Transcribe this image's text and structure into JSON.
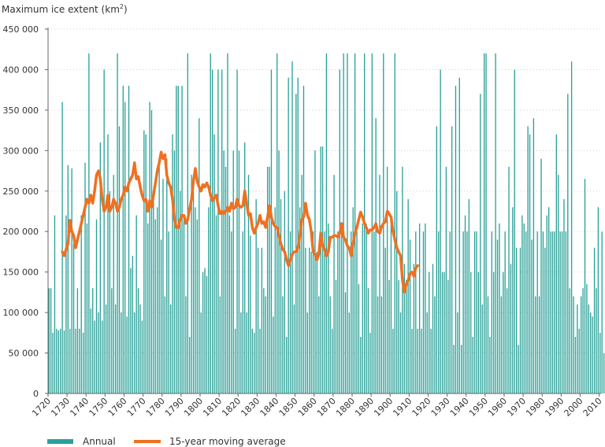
{
  "chart_data": {
    "type": "bar",
    "title": "",
    "ylabel": "Maximum ice extent (km",
    "ylabel_sup": "2",
    "ylabel_close": ")",
    "xlabel": "",
    "ylim": [
      0,
      450000
    ],
    "xlim": [
      1720,
      2011
    ],
    "y_ticks": [
      0,
      50000,
      100000,
      150000,
      200000,
      250000,
      300000,
      350000,
      400000,
      450000
    ],
    "y_tick_labels": [
      "0",
      "50 000",
      "100 000",
      "150 000",
      "200 000",
      "250 000",
      "300 000",
      "350 000",
      "400 000",
      "450 000"
    ],
    "x_ticks": [
      1720,
      1730,
      1740,
      1750,
      1760,
      1770,
      1780,
      1790,
      1800,
      1810,
      1820,
      1830,
      1840,
      1850,
      1860,
      1870,
      1880,
      1890,
      1900,
      1910,
      1920,
      1930,
      1940,
      1950,
      1960,
      1970,
      1980,
      1990,
      2000,
      2010
    ],
    "x_tick_labels": [
      "1720",
      "1730",
      "1740",
      "1750",
      "1760",
      "1770",
      "1780",
      "1790",
      "1800",
      "1810",
      "1820",
      "1830",
      "1840",
      "1850",
      "1860",
      "1870",
      "1880",
      "1890",
      "1900",
      "1910",
      "1920",
      "1930",
      "1940",
      "1950",
      "1960",
      "1970",
      "1980",
      "1990",
      "2000",
      "2010"
    ],
    "legend": [
      {
        "label": "Annual",
        "color": "#2aa198"
      },
      {
        "label": "15-year moving average",
        "color": "#f07020"
      }
    ],
    "colors": {
      "annual": "#2aa198",
      "moving_average": "#f07020",
      "axis": "#666666",
      "grid": "#cfcfcf"
    },
    "series": [
      {
        "name": "Annual",
        "start_year": 1720,
        "values": [
          130000,
          130000,
          75000,
          220000,
          80000,
          78000,
          80000,
          360000,
          78000,
          220000,
          282000,
          80000,
          278000,
          185000,
          80000,
          130000,
          80000,
          220000,
          75000,
          285000,
          210000,
          420000,
          105000,
          130000,
          90000,
          215000,
          100000,
          310000,
          90000,
          400000,
          110000,
          320000,
          250000,
          130000,
          270000,
          110000,
          420000,
          330000,
          100000,
          380000,
          360000,
          95000,
          380000,
          155000,
          170000,
          100000,
          220000,
          130000,
          110000,
          90000,
          325000,
          320000,
          210000,
          360000,
          350000,
          250000,
          215000,
          230000,
          280000,
          190000,
          265000,
          120000,
          290000,
          200000,
          110000,
          320000,
          300000,
          380000,
          380000,
          250000,
          380000,
          220000,
          120000,
          420000,
          70000,
          270000,
          250000,
          230000,
          215000,
          340000,
          100000,
          150000,
          155000,
          145000,
          230000,
          420000,
          400000,
          320000,
          220000,
          400000,
          120000,
          400000,
          300000,
          280000,
          420000,
          220000,
          200000,
          300000,
          80000,
          400000,
          300000,
          100000,
          200000,
          310000,
          100000,
          270000,
          195000,
          80000,
          75000,
          240000,
          180000,
          80000,
          180000,
          130000,
          120000,
          280000,
          280000,
          400000,
          95000,
          230000,
          420000,
          300000,
          240000,
          120000,
          250000,
          70000,
          390000,
          200000,
          410000,
          110000,
          370000,
          390000,
          230000,
          270000,
          380000,
          180000,
          100000,
          180000,
          175000,
          200000,
          300000,
          175000,
          120000,
          305000,
          305000,
          200000,
          420000,
          210000,
          120000,
          80000,
          270000,
          140000,
          200000,
          400000,
          200000,
          420000,
          125000,
          420000,
          100000,
          200000,
          230000,
          420000,
          200000,
          135000,
          70000,
          210000,
          420000,
          210000,
          130000,
          75000,
          420000,
          200000,
          340000,
          120000,
          270000,
          120000,
          420000,
          180000,
          280000,
          140000,
          210000,
          80000,
          420000,
          250000,
          140000,
          100000,
          280000,
          160000,
          140000,
          240000,
          190000,
          80000,
          160000,
          200000,
          80000,
          210000,
          80000,
          200000,
          210000,
          100000,
          150000,
          80000,
          160000,
          120000,
          330000,
          200000,
          400000,
          150000,
          150000,
          280000,
          140000,
          200000,
          330000,
          60000,
          380000,
          100000,
          390000,
          60000,
          200000,
          220000,
          200000,
          240000,
          150000,
          70000,
          200000,
          200000,
          150000,
          370000,
          110000,
          420000,
          420000,
          120000,
          70000,
          200000,
          150000,
          420000,
          190000,
          210000,
          120000,
          150000,
          200000,
          130000,
          280000,
          160000,
          230000,
          400000,
          180000,
          60000,
          180000,
          220000,
          210000,
          200000,
          330000,
          320000,
          190000,
          340000,
          120000,
          200000,
          120000,
          290000,
          200000,
          180000,
          220000,
          230000,
          200000,
          200000,
          200000,
          320000,
          270000,
          200000,
          200000,
          240000,
          200000,
          370000,
          130000,
          410000,
          120000,
          70000,
          110000,
          80000,
          120000,
          130000,
          265000,
          135000,
          110000,
          100000,
          95000,
          180000,
          130000,
          230000,
          75000,
          200000,
          50000,
          110000,
          245000,
          310000
        ]
      },
      {
        "name": "15-year moving average",
        "points": [
          [
            1727,
            175000
          ],
          [
            1728,
            170000
          ],
          [
            1729,
            178000
          ],
          [
            1730,
            185000
          ],
          [
            1731,
            214000
          ],
          [
            1732,
            200000
          ],
          [
            1733,
            195000
          ],
          [
            1734,
            180000
          ],
          [
            1735,
            190000
          ],
          [
            1736,
            200000
          ],
          [
            1737,
            210000
          ],
          [
            1738,
            220000
          ],
          [
            1739,
            230000
          ],
          [
            1740,
            240000
          ],
          [
            1741,
            235000
          ],
          [
            1742,
            245000
          ],
          [
            1743,
            235000
          ],
          [
            1744,
            250000
          ],
          [
            1745,
            270000
          ],
          [
            1746,
            275000
          ],
          [
            1747,
            265000
          ],
          [
            1748,
            240000
          ],
          [
            1749,
            225000
          ],
          [
            1750,
            230000
          ],
          [
            1751,
            245000
          ],
          [
            1752,
            225000
          ],
          [
            1753,
            230000
          ],
          [
            1754,
            240000
          ],
          [
            1755,
            235000
          ],
          [
            1756,
            225000
          ],
          [
            1757,
            230000
          ],
          [
            1758,
            240000
          ],
          [
            1759,
            245000
          ],
          [
            1760,
            255000
          ],
          [
            1761,
            250000
          ],
          [
            1762,
            260000
          ],
          [
            1763,
            265000
          ],
          [
            1764,
            270000
          ],
          [
            1765,
            285000
          ],
          [
            1766,
            265000
          ],
          [
            1767,
            268000
          ],
          [
            1768,
            255000
          ],
          [
            1769,
            245000
          ],
          [
            1770,
            238000
          ],
          [
            1771,
            240000
          ],
          [
            1772,
            225000
          ],
          [
            1773,
            238000
          ],
          [
            1774,
            230000
          ],
          [
            1775,
            245000
          ],
          [
            1776,
            260000
          ],
          [
            1777,
            275000
          ],
          [
            1778,
            285000
          ],
          [
            1779,
            298000
          ],
          [
            1780,
            290000
          ],
          [
            1781,
            295000
          ],
          [
            1782,
            270000
          ],
          [
            1783,
            260000
          ],
          [
            1784,
            255000
          ],
          [
            1785,
            240000
          ],
          [
            1786,
            215000
          ],
          [
            1787,
            205000
          ],
          [
            1788,
            205000
          ],
          [
            1789,
            215000
          ],
          [
            1790,
            220000
          ],
          [
            1791,
            220000
          ],
          [
            1792,
            210000
          ],
          [
            1793,
            215000
          ],
          [
            1794,
            228000
          ],
          [
            1795,
            240000
          ],
          [
            1796,
            262000
          ],
          [
            1797,
            278000
          ],
          [
            1798,
            262000
          ],
          [
            1799,
            255000
          ],
          [
            1800,
            250000
          ],
          [
            1801,
            258000
          ],
          [
            1802,
            255000
          ],
          [
            1803,
            260000
          ],
          [
            1804,
            255000
          ],
          [
            1805,
            245000
          ],
          [
            1806,
            238000
          ],
          [
            1807,
            242000
          ],
          [
            1808,
            245000
          ],
          [
            1809,
            232000
          ],
          [
            1810,
            222000
          ],
          [
            1811,
            225000
          ],
          [
            1812,
            222000
          ],
          [
            1813,
            225000
          ],
          [
            1814,
            230000
          ],
          [
            1815,
            225000
          ],
          [
            1816,
            235000
          ],
          [
            1817,
            228000
          ],
          [
            1818,
            230000
          ],
          [
            1819,
            240000
          ],
          [
            1820,
            232000
          ],
          [
            1821,
            230000
          ],
          [
            1822,
            232000
          ],
          [
            1823,
            250000
          ],
          [
            1824,
            235000
          ],
          [
            1825,
            220000
          ],
          [
            1826,
            222000
          ],
          [
            1827,
            205000
          ],
          [
            1828,
            198000
          ],
          [
            1829,
            205000
          ],
          [
            1830,
            210000
          ],
          [
            1831,
            220000
          ],
          [
            1832,
            210000
          ],
          [
            1833,
            212000
          ],
          [
            1834,
            205000
          ],
          [
            1835,
            218000
          ],
          [
            1836,
            232000
          ],
          [
            1837,
            218000
          ],
          [
            1838,
            210000
          ],
          [
            1839,
            206000
          ],
          [
            1840,
            205000
          ],
          [
            1841,
            195000
          ],
          [
            1842,
            185000
          ],
          [
            1843,
            178000
          ],
          [
            1844,
            175000
          ],
          [
            1845,
            165000
          ],
          [
            1846,
            158000
          ],
          [
            1847,
            165000
          ],
          [
            1848,
            172000
          ],
          [
            1849,
            175000
          ],
          [
            1850,
            175000
          ],
          [
            1851,
            180000
          ],
          [
            1852,
            195000
          ],
          [
            1853,
            215000
          ],
          [
            1854,
            218000
          ],
          [
            1855,
            235000
          ],
          [
            1856,
            220000
          ],
          [
            1857,
            215000
          ],
          [
            1858,
            200000
          ],
          [
            1859,
            175000
          ],
          [
            1860,
            172000
          ],
          [
            1861,
            165000
          ],
          [
            1862,
            172000
          ],
          [
            1863,
            198000
          ],
          [
            1864,
            182000
          ],
          [
            1865,
            178000
          ],
          [
            1866,
            170000
          ],
          [
            1867,
            175000
          ],
          [
            1868,
            193000
          ],
          [
            1869,
            193000
          ],
          [
            1870,
            195000
          ],
          [
            1871,
            195000
          ],
          [
            1872,
            193000
          ],
          [
            1873,
            198000
          ],
          [
            1874,
            210000
          ],
          [
            1875,
            193000
          ],
          [
            1876,
            190000
          ],
          [
            1877,
            182000
          ],
          [
            1878,
            180000
          ],
          [
            1879,
            170000
          ],
          [
            1880,
            185000
          ],
          [
            1881,
            198000
          ],
          [
            1882,
            205000
          ],
          [
            1883,
            215000
          ],
          [
            1884,
            224000
          ],
          [
            1885,
            218000
          ],
          [
            1886,
            210000
          ],
          [
            1887,
            205000
          ],
          [
            1888,
            198000
          ],
          [
            1889,
            202000
          ],
          [
            1890,
            202000
          ],
          [
            1891,
            205000
          ],
          [
            1892,
            210000
          ],
          [
            1893,
            200000
          ],
          [
            1894,
            198000
          ],
          [
            1895,
            206000
          ],
          [
            1896,
            210000
          ],
          [
            1897,
            212000
          ],
          [
            1898,
            225000
          ],
          [
            1899,
            222000
          ],
          [
            1900,
            218000
          ],
          [
            1901,
            200000
          ],
          [
            1902,
            190000
          ],
          [
            1903,
            180000
          ],
          [
            1904,
            175000
          ],
          [
            1905,
            170000
          ],
          [
            1906,
            140000
          ],
          [
            1907,
            125000
          ],
          [
            1908,
            135000
          ],
          [
            1909,
            140000
          ],
          [
            1910,
            148000
          ],
          [
            1911,
            150000
          ],
          [
            1912,
            145000
          ],
          [
            1913,
            155000
          ],
          [
            1914,
            158000
          ]
        ]
      }
    ]
  }
}
